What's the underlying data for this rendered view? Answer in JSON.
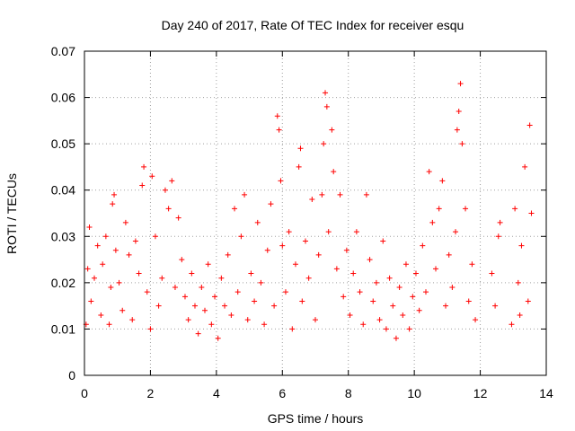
{
  "chart_data": {
    "type": "scatter",
    "title": "Day 240 of 2017, Rate Of TEC Index for receiver esqu",
    "xlabel": "GPS time / hours",
    "ylabel": "ROTI / TECUs",
    "xlim": [
      0,
      14
    ],
    "ylim": [
      0,
      0.07
    ],
    "x_ticks": [
      "0",
      "2",
      "4",
      "6",
      "8",
      "10",
      "12",
      "14"
    ],
    "y_ticks": [
      "0",
      "0.01",
      "0.02",
      "0.03",
      "0.04",
      "0.05",
      "0.06",
      "0.07"
    ],
    "grid": true,
    "marker": "+",
    "series_color": "#ff0000",
    "series": [
      {
        "name": "ROTI",
        "points": [
          [
            0.05,
            0.011
          ],
          [
            0.1,
            0.023
          ],
          [
            0.15,
            0.032
          ],
          [
            0.2,
            0.016
          ],
          [
            0.3,
            0.021
          ],
          [
            0.4,
            0.028
          ],
          [
            0.5,
            0.013
          ],
          [
            0.55,
            0.024
          ],
          [
            0.65,
            0.03
          ],
          [
            0.75,
            0.011
          ],
          [
            0.8,
            0.019
          ],
          [
            0.85,
            0.037
          ],
          [
            0.9,
            0.039
          ],
          [
            0.95,
            0.027
          ],
          [
            1.05,
            0.02
          ],
          [
            1.15,
            0.014
          ],
          [
            1.25,
            0.033
          ],
          [
            1.35,
            0.026
          ],
          [
            1.45,
            0.012
          ],
          [
            1.55,
            0.029
          ],
          [
            1.65,
            0.022
          ],
          [
            1.75,
            0.041
          ],
          [
            1.8,
            0.045
          ],
          [
            1.9,
            0.018
          ],
          [
            2.0,
            0.01
          ],
          [
            2.05,
            0.043
          ],
          [
            2.15,
            0.03
          ],
          [
            2.25,
            0.015
          ],
          [
            2.35,
            0.021
          ],
          [
            2.45,
            0.04
          ],
          [
            2.55,
            0.036
          ],
          [
            2.65,
            0.042
          ],
          [
            2.75,
            0.019
          ],
          [
            2.85,
            0.034
          ],
          [
            2.95,
            0.025
          ],
          [
            3.05,
            0.017
          ],
          [
            3.15,
            0.012
          ],
          [
            3.25,
            0.022
          ],
          [
            3.35,
            0.015
          ],
          [
            3.45,
            0.009
          ],
          [
            3.55,
            0.019
          ],
          [
            3.65,
            0.014
          ],
          [
            3.75,
            0.024
          ],
          [
            3.85,
            0.011
          ],
          [
            3.95,
            0.017
          ],
          [
            4.05,
            0.008
          ],
          [
            4.15,
            0.021
          ],
          [
            4.25,
            0.015
          ],
          [
            4.35,
            0.026
          ],
          [
            4.45,
            0.013
          ],
          [
            4.55,
            0.036
          ],
          [
            4.65,
            0.018
          ],
          [
            4.75,
            0.03
          ],
          [
            4.85,
            0.039
          ],
          [
            4.95,
            0.012
          ],
          [
            5.05,
            0.022
          ],
          [
            5.15,
            0.016
          ],
          [
            5.25,
            0.033
          ],
          [
            5.35,
            0.02
          ],
          [
            5.45,
            0.011
          ],
          [
            5.55,
            0.027
          ],
          [
            5.65,
            0.037
          ],
          [
            5.75,
            0.015
          ],
          [
            5.85,
            0.056
          ],
          [
            5.9,
            0.053
          ],
          [
            5.95,
            0.042
          ],
          [
            6.0,
            0.028
          ],
          [
            6.1,
            0.018
          ],
          [
            6.2,
            0.031
          ],
          [
            6.3,
            0.01
          ],
          [
            6.4,
            0.024
          ],
          [
            6.5,
            0.045
          ],
          [
            6.55,
            0.049
          ],
          [
            6.6,
            0.016
          ],
          [
            6.7,
            0.029
          ],
          [
            6.8,
            0.021
          ],
          [
            6.9,
            0.038
          ],
          [
            7.0,
            0.012
          ],
          [
            7.1,
            0.026
          ],
          [
            7.2,
            0.039
          ],
          [
            7.25,
            0.05
          ],
          [
            7.3,
            0.061
          ],
          [
            7.35,
            0.058
          ],
          [
            7.4,
            0.031
          ],
          [
            7.5,
            0.053
          ],
          [
            7.55,
            0.044
          ],
          [
            7.65,
            0.023
          ],
          [
            7.75,
            0.039
          ],
          [
            7.85,
            0.017
          ],
          [
            7.95,
            0.027
          ],
          [
            8.05,
            0.013
          ],
          [
            8.15,
            0.022
          ],
          [
            8.25,
            0.031
          ],
          [
            8.35,
            0.018
          ],
          [
            8.45,
            0.011
          ],
          [
            8.55,
            0.039
          ],
          [
            8.65,
            0.025
          ],
          [
            8.75,
            0.016
          ],
          [
            8.85,
            0.02
          ],
          [
            8.95,
            0.012
          ],
          [
            9.05,
            0.029
          ],
          [
            9.15,
            0.01
          ],
          [
            9.25,
            0.021
          ],
          [
            9.35,
            0.015
          ],
          [
            9.45,
            0.008
          ],
          [
            9.55,
            0.019
          ],
          [
            9.65,
            0.013
          ],
          [
            9.75,
            0.024
          ],
          [
            9.85,
            0.01
          ],
          [
            9.95,
            0.017
          ],
          [
            10.05,
            0.022
          ],
          [
            10.15,
            0.014
          ],
          [
            10.25,
            0.028
          ],
          [
            10.35,
            0.018
          ],
          [
            10.45,
            0.044
          ],
          [
            10.55,
            0.033
          ],
          [
            10.65,
            0.023
          ],
          [
            10.75,
            0.036
          ],
          [
            10.85,
            0.042
          ],
          [
            10.95,
            0.015
          ],
          [
            11.05,
            0.026
          ],
          [
            11.15,
            0.019
          ],
          [
            11.25,
            0.031
          ],
          [
            11.3,
            0.053
          ],
          [
            11.35,
            0.057
          ],
          [
            11.4,
            0.063
          ],
          [
            11.45,
            0.05
          ],
          [
            11.55,
            0.036
          ],
          [
            11.65,
            0.016
          ],
          [
            11.75,
            0.024
          ],
          [
            11.85,
            0.012
          ],
          [
            12.35,
            0.022
          ],
          [
            12.45,
            0.015
          ],
          [
            12.55,
            0.03
          ],
          [
            12.6,
            0.033
          ],
          [
            12.95,
            0.011
          ],
          [
            13.05,
            0.036
          ],
          [
            13.15,
            0.02
          ],
          [
            13.2,
            0.013
          ],
          [
            13.25,
            0.028
          ],
          [
            13.35,
            0.045
          ],
          [
            13.45,
            0.016
          ],
          [
            13.5,
            0.054
          ],
          [
            13.55,
            0.035
          ]
        ]
      }
    ]
  }
}
